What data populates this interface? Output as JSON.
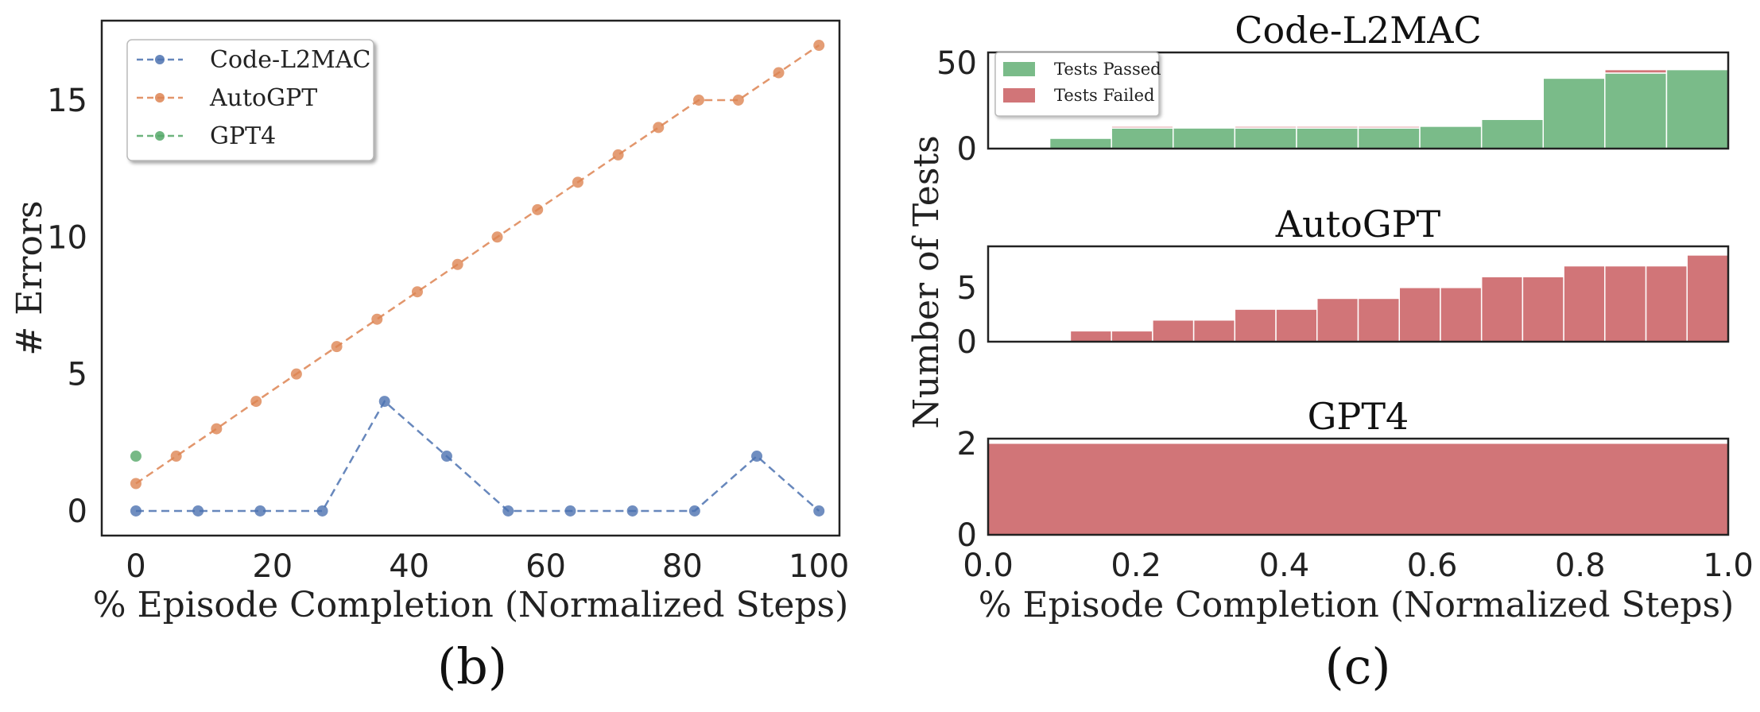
{
  "chart_data": [
    {
      "type": "line",
      "caption": "(b)",
      "xlabel": "% Episode Completion (Normalized Steps)",
      "ylabel": "# Errors",
      "xlim": [
        -5,
        103
      ],
      "ylim": [
        -0.9,
        17.9
      ],
      "xticks": [
        0,
        20,
        40,
        60,
        80,
        100
      ],
      "yticks": [
        0,
        5,
        10,
        15
      ],
      "legend": {
        "position": "top-left"
      },
      "series": [
        {
          "name": "Code-L2MAC",
          "color": "#4c72b0",
          "x": [
            0,
            9.1,
            18.2,
            27.3,
            36.4,
            45.5,
            54.5,
            63.6,
            72.7,
            81.8,
            90.9,
            100
          ],
          "y": [
            0,
            0,
            0,
            0,
            4,
            2,
            0,
            0,
            0,
            0,
            2,
            0
          ]
        },
        {
          "name": "AutoGPT",
          "color": "#dd8452",
          "x": [
            0,
            5.9,
            11.8,
            17.6,
            23.5,
            29.4,
            35.3,
            41.2,
            47.1,
            52.9,
            58.8,
            64.7,
            70.6,
            76.5,
            82.4,
            88.2,
            94.1,
            100
          ],
          "y": [
            1,
            2,
            3,
            4,
            5,
            6,
            7,
            8,
            9,
            10,
            11,
            12,
            13,
            14,
            15,
            15,
            16,
            17
          ]
        },
        {
          "name": "GPT4",
          "color": "#55a868",
          "x": [
            0
          ],
          "y": [
            2
          ]
        }
      ]
    },
    {
      "type": "bar",
      "caption": "(c)",
      "xlabel": "% Episode Completion (Normalized Steps)",
      "ylabel": "Number of Tests",
      "xlim": [
        0,
        1
      ],
      "xticks": [
        "0.0",
        "0.2",
        "0.4",
        "0.6",
        "0.8",
        "1.0"
      ],
      "legend": {
        "position": "top-left",
        "entries": [
          {
            "name": "Tests Passed",
            "color": "#55a868"
          },
          {
            "name": "Tests Failed",
            "color": "#c44e52"
          }
        ]
      },
      "panels": [
        {
          "title": "Code-L2MAC",
          "ylim": [
            0,
            56
          ],
          "yticks": [
            0,
            50
          ],
          "bins": [
            {
              "x0": 0.0,
              "x1": 0.0833,
              "passed": 0,
              "failed": 0
            },
            {
              "x0": 0.0833,
              "x1": 0.1667,
              "passed": 6,
              "failed": 0
            },
            {
              "x0": 0.1667,
              "x1": 0.25,
              "passed": 12,
              "failed": 1
            },
            {
              "x0": 0.25,
              "x1": 0.3333,
              "passed": 12,
              "failed": 0
            },
            {
              "x0": 0.3333,
              "x1": 0.4167,
              "passed": 12,
              "failed": 1
            },
            {
              "x0": 0.4167,
              "x1": 0.5,
              "passed": 12,
              "failed": 1
            },
            {
              "x0": 0.5,
              "x1": 0.5833,
              "passed": 12,
              "failed": 1
            },
            {
              "x0": 0.5833,
              "x1": 0.6667,
              "passed": 13,
              "failed": 0
            },
            {
              "x0": 0.6667,
              "x1": 0.75,
              "passed": 17,
              "failed": 0
            },
            {
              "x0": 0.75,
              "x1": 0.8333,
              "passed": 41,
              "failed": 0
            },
            {
              "x0": 0.8333,
              "x1": 0.9167,
              "passed": 44,
              "failed": 2
            },
            {
              "x0": 0.9167,
              "x1": 1.0,
              "passed": 46,
              "failed": 0
            }
          ]
        },
        {
          "title": "AutoGPT",
          "ylim": [
            0,
            8.8
          ],
          "yticks": [
            0,
            5
          ],
          "bins": [
            {
              "x0": 0.0,
              "x1": 0.0556,
              "passed": 0,
              "failed": 0
            },
            {
              "x0": 0.0556,
              "x1": 0.1111,
              "passed": 0,
              "failed": 0
            },
            {
              "x0": 0.1111,
              "x1": 0.1667,
              "passed": 0,
              "failed": 1
            },
            {
              "x0": 0.1667,
              "x1": 0.2222,
              "passed": 0,
              "failed": 1
            },
            {
              "x0": 0.2222,
              "x1": 0.2778,
              "passed": 0,
              "failed": 2
            },
            {
              "x0": 0.2778,
              "x1": 0.3333,
              "passed": 0,
              "failed": 2
            },
            {
              "x0": 0.3333,
              "x1": 0.3889,
              "passed": 0,
              "failed": 3
            },
            {
              "x0": 0.3889,
              "x1": 0.4444,
              "passed": 0,
              "failed": 3
            },
            {
              "x0": 0.4444,
              "x1": 0.5,
              "passed": 0,
              "failed": 4
            },
            {
              "x0": 0.5,
              "x1": 0.5556,
              "passed": 0,
              "failed": 4
            },
            {
              "x0": 0.5556,
              "x1": 0.6111,
              "passed": 0,
              "failed": 5
            },
            {
              "x0": 0.6111,
              "x1": 0.6667,
              "passed": 0,
              "failed": 5
            },
            {
              "x0": 0.6667,
              "x1": 0.7222,
              "passed": 0,
              "failed": 6
            },
            {
              "x0": 0.7222,
              "x1": 0.7778,
              "passed": 0,
              "failed": 6
            },
            {
              "x0": 0.7778,
              "x1": 0.8333,
              "passed": 0,
              "failed": 7
            },
            {
              "x0": 0.8333,
              "x1": 0.8889,
              "passed": 0,
              "failed": 7
            },
            {
              "x0": 0.8889,
              "x1": 0.9444,
              "passed": 0,
              "failed": 7
            },
            {
              "x0": 0.9444,
              "x1": 1.0,
              "passed": 0,
              "failed": 8
            }
          ]
        },
        {
          "title": "GPT4",
          "ylim": [
            0,
            2.1
          ],
          "yticks": [
            0,
            2
          ],
          "bins": [
            {
              "x0": 0.0,
              "x1": 1.0,
              "passed": 0,
              "failed": 2
            }
          ]
        }
      ]
    }
  ]
}
